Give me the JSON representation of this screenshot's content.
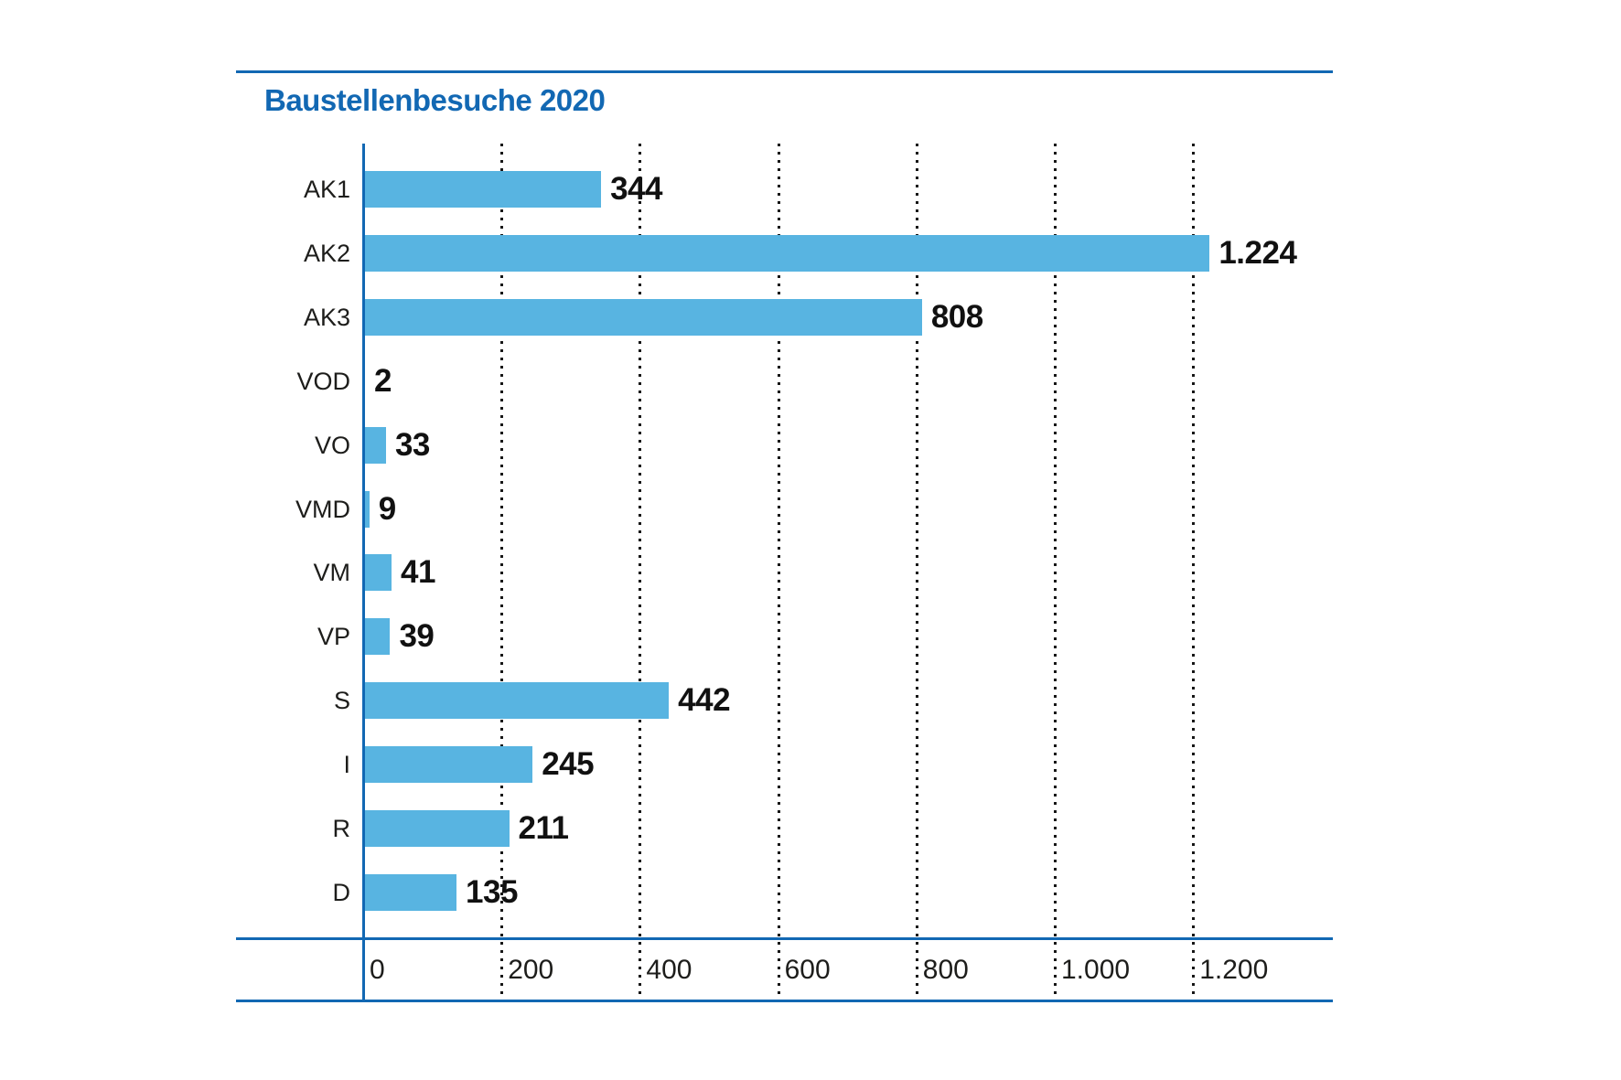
{
  "header": {
    "title": "Baustellenbesuche 2020"
  },
  "chart_data": {
    "type": "bar",
    "orientation": "horizontal",
    "title": "Baustellenbesuche 2020",
    "categories": [
      "AK1",
      "AK2",
      "AK3",
      "VOD",
      "VO",
      "VMD",
      "VM",
      "VP",
      "S",
      "I",
      "R",
      "D"
    ],
    "values": [
      344,
      1224,
      808,
      2,
      33,
      9,
      41,
      39,
      442,
      245,
      211,
      135
    ],
    "value_labels": [
      "344",
      "1.224",
      "808",
      "2",
      "33",
      "9",
      "41",
      "39",
      "442",
      "245",
      "211",
      "135"
    ],
    "x_ticks": [
      0,
      200,
      400,
      600,
      800,
      1000,
      1200
    ],
    "x_tick_labels": [
      "0",
      "200",
      "400",
      "600",
      "800",
      "1.000",
      "1.200"
    ],
    "xlim": [
      0,
      1400
    ],
    "xlabel": "",
    "ylabel": "",
    "grid": "vertical-dotted",
    "legend": "none",
    "colors": {
      "bar_fill": "#58b4e1",
      "axis_and_rules": "#1268b3",
      "gridline": "#161616",
      "label_text": "#1d1d1b",
      "value_text": "#111111",
      "title_text": "#1268b3"
    }
  }
}
